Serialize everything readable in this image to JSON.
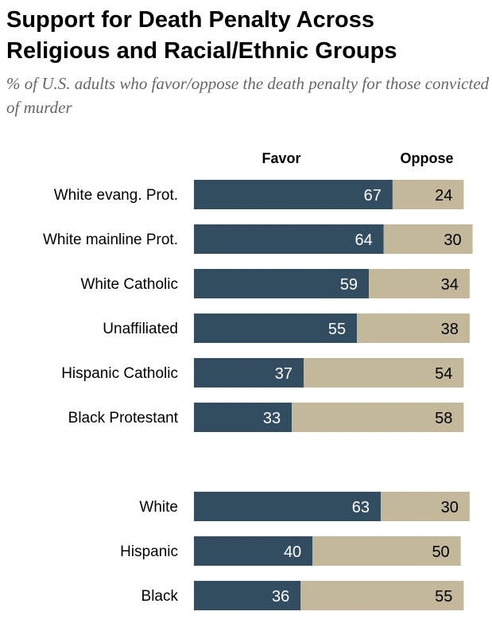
{
  "chart_data": {
    "type": "bar",
    "stacked": true,
    "orientation": "horizontal",
    "title": "Support for Death Penalty Across Religious and Racial/Ethnic Groups",
    "subtitle": "% of U.S. adults who favor/oppose the death penalty for those convicted of murder",
    "categories": [
      "White evang. Prot.",
      "White mainline Prot.",
      "White Catholic",
      "Unaffiliated",
      "Hispanic Catholic",
      "Black Protestant",
      "White",
      "Hispanic",
      "Black"
    ],
    "groups": [
      [
        0,
        1,
        2,
        3,
        4,
        5
      ],
      [
        6,
        7,
        8
      ]
    ],
    "series": [
      {
        "name": "Favor",
        "color": "#324d60",
        "values": [
          67,
          64,
          59,
          55,
          37,
          33,
          63,
          40,
          36
        ]
      },
      {
        "name": "Oppose",
        "color": "#c3b99a",
        "values": [
          24,
          30,
          34,
          38,
          54,
          58,
          30,
          50,
          55
        ]
      }
    ]
  }
}
